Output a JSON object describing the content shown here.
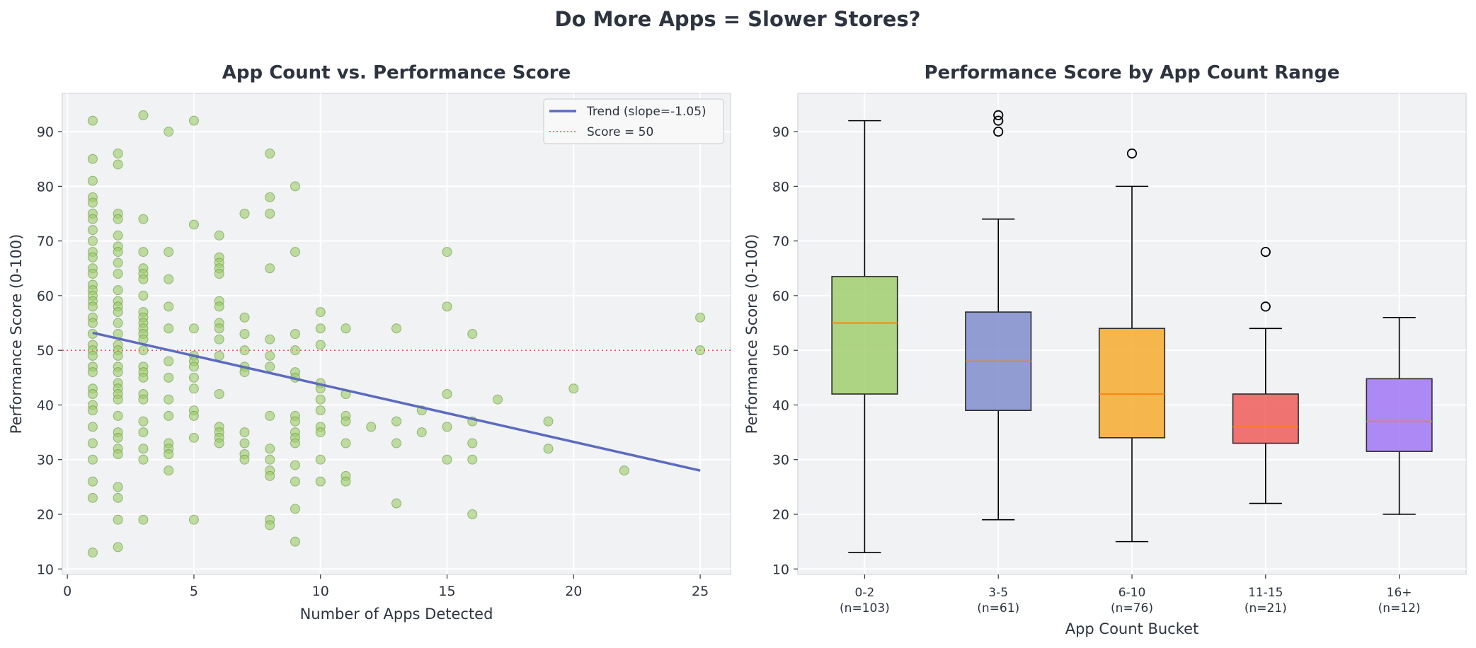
{
  "suptitle": "Do More Apps = Slower Stores?",
  "chart_data": [
    {
      "type": "scatter",
      "title": "App Count vs. Performance Score",
      "xlabel": "Number of Apps Detected",
      "ylabel": "Performance Score (0-100)",
      "xlim": [
        -0.2,
        26.2
      ],
      "ylim": [
        9,
        97
      ],
      "xticks": [
        0,
        5,
        10,
        15,
        20,
        25
      ],
      "yticks": [
        10,
        20,
        30,
        40,
        50,
        60,
        70,
        80,
        90
      ],
      "grid": true,
      "legend_position": "top-right",
      "legend": [
        {
          "label": "Trend (slope=-1.05)",
          "style": "solid-line",
          "color": "#5c6bc0"
        },
        {
          "label": "Score = 50",
          "style": "dotted-line",
          "color": "#ef5350"
        }
      ],
      "point_color": "#9ccc65",
      "point_edge_color": "#558b2f",
      "trend": {
        "x": [
          1,
          25
        ],
        "y": [
          53.2,
          28.0
        ],
        "color": "#5c6bc0"
      },
      "reference_line": {
        "y": 50,
        "color": "#ef5350"
      },
      "points": [
        [
          1,
          92
        ],
        [
          1,
          85
        ],
        [
          1,
          81
        ],
        [
          1,
          78
        ],
        [
          1,
          77
        ],
        [
          1,
          75
        ],
        [
          1,
          74
        ],
        [
          1,
          72
        ],
        [
          1,
          70
        ],
        [
          1,
          68
        ],
        [
          1,
          67
        ],
        [
          1,
          65
        ],
        [
          1,
          64
        ],
        [
          1,
          62
        ],
        [
          1,
          61
        ],
        [
          1,
          60
        ],
        [
          1,
          59
        ],
        [
          1,
          58
        ],
        [
          1,
          56
        ],
        [
          1,
          55
        ],
        [
          1,
          53
        ],
        [
          1,
          51
        ],
        [
          1,
          50
        ],
        [
          1,
          49
        ],
        [
          1,
          47
        ],
        [
          1,
          46
        ],
        [
          1,
          43
        ],
        [
          1,
          42
        ],
        [
          1,
          40
        ],
        [
          1,
          39
        ],
        [
          1,
          36
        ],
        [
          1,
          33
        ],
        [
          1,
          30
        ],
        [
          1,
          26
        ],
        [
          1,
          23
        ],
        [
          1,
          13
        ],
        [
          2,
          86
        ],
        [
          2,
          84
        ],
        [
          2,
          75
        ],
        [
          2,
          74
        ],
        [
          2,
          71
        ],
        [
          2,
          69
        ],
        [
          2,
          68
        ],
        [
          2,
          66
        ],
        [
          2,
          64
        ],
        [
          2,
          61
        ],
        [
          2,
          59
        ],
        [
          2,
          58
        ],
        [
          2,
          57
        ],
        [
          2,
          55
        ],
        [
          2,
          53
        ],
        [
          2,
          51
        ],
        [
          2,
          50
        ],
        [
          2,
          49
        ],
        [
          2,
          47
        ],
        [
          2,
          46
        ],
        [
          2,
          44
        ],
        [
          2,
          43
        ],
        [
          2,
          42
        ],
        [
          2,
          41
        ],
        [
          2,
          38
        ],
        [
          2,
          35
        ],
        [
          2,
          34
        ],
        [
          2,
          32
        ],
        [
          2,
          31
        ],
        [
          2,
          25
        ],
        [
          2,
          23
        ],
        [
          2,
          19
        ],
        [
          2,
          14
        ],
        [
          3,
          93
        ],
        [
          3,
          74
        ],
        [
          3,
          68
        ],
        [
          3,
          65
        ],
        [
          3,
          64
        ],
        [
          3,
          63
        ],
        [
          3,
          60
        ],
        [
          3,
          57
        ],
        [
          3,
          56
        ],
        [
          3,
          55
        ],
        [
          3,
          54
        ],
        [
          3,
          53
        ],
        [
          3,
          52
        ],
        [
          3,
          50
        ],
        [
          3,
          47
        ],
        [
          3,
          46
        ],
        [
          3,
          45
        ],
        [
          3,
          42
        ],
        [
          3,
          41
        ],
        [
          3,
          37
        ],
        [
          3,
          35
        ],
        [
          3,
          32
        ],
        [
          3,
          30
        ],
        [
          3,
          19
        ],
        [
          4,
          90
        ],
        [
          4,
          68
        ],
        [
          4,
          63
        ],
        [
          4,
          58
        ],
        [
          4,
          54
        ],
        [
          4,
          48
        ],
        [
          4,
          45
        ],
        [
          4,
          41
        ],
        [
          4,
          38
        ],
        [
          4,
          33
        ],
        [
          4,
          32
        ],
        [
          4,
          31
        ],
        [
          4,
          28
        ],
        [
          5,
          92
        ],
        [
          5,
          73
        ],
        [
          5,
          54
        ],
        [
          5,
          49
        ],
        [
          5,
          48
        ],
        [
          5,
          47
        ],
        [
          5,
          45
        ],
        [
          5,
          43
        ],
        [
          5,
          39
        ],
        [
          5,
          38
        ],
        [
          5,
          34
        ],
        [
          5,
          19
        ],
        [
          6,
          71
        ],
        [
          6,
          67
        ],
        [
          6,
          66
        ],
        [
          6,
          65
        ],
        [
          6,
          64
        ],
        [
          6,
          59
        ],
        [
          6,
          58
        ],
        [
          6,
          55
        ],
        [
          6,
          54
        ],
        [
          6,
          52
        ],
        [
          6,
          49
        ],
        [
          6,
          42
        ],
        [
          6,
          36
        ],
        [
          6,
          35
        ],
        [
          6,
          34
        ],
        [
          6,
          33
        ],
        [
          7,
          75
        ],
        [
          7,
          56
        ],
        [
          7,
          53
        ],
        [
          7,
          50
        ],
        [
          7,
          47
        ],
        [
          7,
          46
        ],
        [
          7,
          35
        ],
        [
          7,
          33
        ],
        [
          7,
          31
        ],
        [
          7,
          30
        ],
        [
          8,
          86
        ],
        [
          8,
          78
        ],
        [
          8,
          75
        ],
        [
          8,
          65
        ],
        [
          8,
          52
        ],
        [
          8,
          49
        ],
        [
          8,
          47
        ],
        [
          8,
          38
        ],
        [
          8,
          32
        ],
        [
          8,
          30
        ],
        [
          8,
          28
        ],
        [
          8,
          27
        ],
        [
          8,
          19
        ],
        [
          8,
          18
        ],
        [
          9,
          80
        ],
        [
          9,
          68
        ],
        [
          9,
          53
        ],
        [
          9,
          50
        ],
        [
          9,
          46
        ],
        [
          9,
          45
        ],
        [
          9,
          38
        ],
        [
          9,
          37
        ],
        [
          9,
          35
        ],
        [
          9,
          34
        ],
        [
          9,
          33
        ],
        [
          9,
          29
        ],
        [
          9,
          26
        ],
        [
          9,
          21
        ],
        [
          9,
          15
        ],
        [
          10,
          57
        ],
        [
          10,
          54
        ],
        [
          10,
          51
        ],
        [
          10,
          44
        ],
        [
          10,
          43
        ],
        [
          10,
          41
        ],
        [
          10,
          39
        ],
        [
          10,
          36
        ],
        [
          10,
          35
        ],
        [
          10,
          30
        ],
        [
          10,
          26
        ],
        [
          11,
          54
        ],
        [
          11,
          42
        ],
        [
          11,
          38
        ],
        [
          11,
          37
        ],
        [
          11,
          33
        ],
        [
          11,
          27
        ],
        [
          11,
          26
        ],
        [
          12,
          36
        ],
        [
          13,
          54
        ],
        [
          13,
          37
        ],
        [
          13,
          33
        ],
        [
          13,
          22
        ],
        [
          14,
          39
        ],
        [
          14,
          35
        ],
        [
          15,
          68
        ],
        [
          15,
          58
        ],
        [
          15,
          42
        ],
        [
          15,
          36
        ],
        [
          15,
          30
        ],
        [
          16,
          53
        ],
        [
          16,
          37
        ],
        [
          16,
          33
        ],
        [
          16,
          30
        ],
        [
          16,
          20
        ],
        [
          17,
          41
        ],
        [
          19,
          37
        ],
        [
          19,
          32
        ],
        [
          20,
          43
        ],
        [
          22,
          28
        ],
        [
          25,
          56
        ],
        [
          25,
          50
        ]
      ]
    },
    {
      "type": "box",
      "title": "Performance Score by App Count Range",
      "xlabel": "App Count Bucket",
      "ylabel": "Performance Score (0-100)",
      "ylim": [
        9,
        97
      ],
      "yticks": [
        10,
        20,
        30,
        40,
        50,
        60,
        70,
        80,
        90
      ],
      "grid": true,
      "median_color": "#ff7f0e",
      "boxes": [
        {
          "label": "0-2",
          "n_label": "(n=103)",
          "whisker_low": 13,
          "q1": 42,
          "median": 55,
          "q3": 63.5,
          "whisker_high": 92,
          "outliers": [],
          "color": "#9ccc65"
        },
        {
          "label": "3-5",
          "n_label": "(n=61)",
          "whisker_low": 19,
          "q1": 39,
          "median": 48,
          "q3": 57,
          "whisker_high": 74,
          "outliers": [
            90,
            92,
            93
          ],
          "color": "#7986cb"
        },
        {
          "label": "6-10",
          "n_label": "(n=76)",
          "whisker_low": 15,
          "q1": 34,
          "median": 42,
          "q3": 54,
          "whisker_high": 80,
          "outliers": [
            86
          ],
          "color": "#f5a623"
        },
        {
          "label": "11-15",
          "n_label": "(n=21)",
          "whisker_low": 22,
          "q1": 33,
          "median": 36,
          "q3": 42,
          "whisker_high": 54,
          "outliers": [
            58,
            68
          ],
          "color": "#ef5350"
        },
        {
          "label": "16+",
          "n_label": "(n=12)",
          "whisker_low": 20,
          "q1": 31.5,
          "median": 37,
          "q3": 44.8,
          "whisker_high": 56,
          "outliers": [],
          "color": "#9c6ef5"
        }
      ]
    }
  ]
}
